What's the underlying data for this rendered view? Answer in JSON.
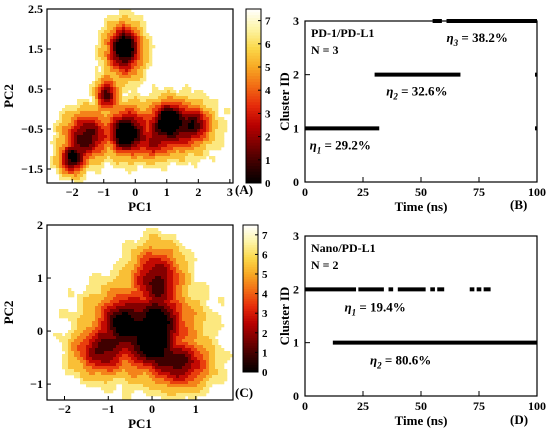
{
  "colors": {
    "cmap": [
      "#000000",
      "#3a0000",
      "#7a0000",
      "#b80000",
      "#e52a0a",
      "#f26a14",
      "#f7a823",
      "#fbd84a",
      "#fdf5a8",
      "#ffffff"
    ]
  },
  "chart_data": [
    {
      "type": "heatmap",
      "panel": "(A)",
      "xlabel": "PC1",
      "ylabel": "PC2",
      "xlim": [
        -2.8,
        3.1
      ],
      "ylim": [
        -1.85,
        2.5
      ],
      "xticks": [
        -2,
        -1,
        0,
        1,
        2,
        3
      ],
      "yticks": [
        -1.5,
        -0.5,
        0.5,
        1.5,
        2.5
      ],
      "colorbar": {
        "range": [
          0,
          7.5
        ],
        "ticks": [
          0,
          1,
          2,
          3,
          4,
          5,
          6,
          7
        ]
      },
      "basins": [
        {
          "x": -0.35,
          "y": 1.6,
          "depth": 1.5
        },
        {
          "x": -1.85,
          "y": -1.05,
          "depth": 2.5
        },
        {
          "x": -0.35,
          "y": -0.65,
          "depth": 1.0
        },
        {
          "x": 0.55,
          "y": -0.95,
          "depth": 2.0
        },
        {
          "x": 1.05,
          "y": -0.2,
          "depth": 1.0
        },
        {
          "x": 1.95,
          "y": -0.35,
          "depth": 1.8
        }
      ]
    },
    {
      "type": "line",
      "panel": "(B)",
      "xlabel": "Time (ns)",
      "ylabel": "Cluster ID",
      "xlim": [
        0,
        100
      ],
      "ylim": [
        0,
        3
      ],
      "xticks": [
        0,
        25,
        50,
        75,
        100
      ],
      "yticks": [
        0,
        1,
        2,
        3
      ],
      "annotation": [
        "PD-1/PD-L1",
        "N = 3"
      ],
      "segments": [
        {
          "cluster": 1,
          "x": [
            0,
            32
          ],
          "label": "η1 = 29.2%"
        },
        {
          "cluster": 2,
          "x": [
            30,
            67
          ],
          "label": "η2 = 32.6%"
        },
        {
          "cluster": 3,
          "x": [
            55,
            59
          ],
          "label": ""
        },
        {
          "cluster": 3,
          "x": [
            61,
            100
          ],
          "label": "η3 = 38.2%"
        }
      ]
    },
    {
      "type": "heatmap",
      "panel": "(C)",
      "xlabel": "PC1",
      "ylabel": "PC2",
      "xlim": [
        -2.4,
        1.85
      ],
      "ylim": [
        -1.3,
        2.0
      ],
      "xticks": [
        -2,
        -1,
        0,
        1
      ],
      "yticks": [
        -1,
        0,
        1,
        2
      ],
      "colorbar": {
        "range": [
          0,
          7.5
        ],
        "ticks": [
          0,
          1,
          2,
          3,
          4,
          5,
          6,
          7
        ]
      },
      "basins": [
        {
          "x": 0.05,
          "y": -0.3,
          "depth": 0.5
        },
        {
          "x": -0.75,
          "y": 0.15,
          "depth": 1.5
        },
        {
          "x": 0.2,
          "y": 0.3,
          "depth": 2.2
        }
      ]
    },
    {
      "type": "line",
      "panel": "(D)",
      "xlabel": "Time (ns)",
      "ylabel": "Cluster ID",
      "xlim": [
        0,
        100
      ],
      "ylim": [
        0,
        3
      ],
      "xticks": [
        0,
        25,
        50,
        75,
        100
      ],
      "yticks": [
        0,
        1,
        2,
        3
      ],
      "annotation": [
        "Nano/PD-L1",
        "N = 2"
      ],
      "segments": [
        {
          "cluster": 2,
          "x": [
            0,
            22
          ],
          "label": ""
        },
        {
          "cluster": 2,
          "x": [
            23,
            34
          ],
          "label": ""
        },
        {
          "cluster": 2,
          "x": [
            36,
            38
          ],
          "label": ""
        },
        {
          "cluster": 2,
          "x": [
            40,
            52
          ],
          "label": ""
        },
        {
          "cluster": 2,
          "x": [
            54,
            56
          ],
          "label": ""
        },
        {
          "cluster": 2,
          "x": [
            57,
            60
          ],
          "label": ""
        },
        {
          "cluster": 2,
          "x": [
            71,
            73
          ],
          "label": ""
        },
        {
          "cluster": 2,
          "x": [
            74,
            76
          ],
          "label": ""
        },
        {
          "cluster": 2,
          "x": [
            77,
            80
          ],
          "label": ""
        },
        {
          "cluster": 1,
          "x": [
            12,
            100
          ],
          "label": ""
        }
      ],
      "labels": [
        {
          "cluster": 2,
          "text": "η1 = 19.4%"
        },
        {
          "cluster": 1,
          "text": "η2 = 80.6%"
        }
      ]
    }
  ]
}
